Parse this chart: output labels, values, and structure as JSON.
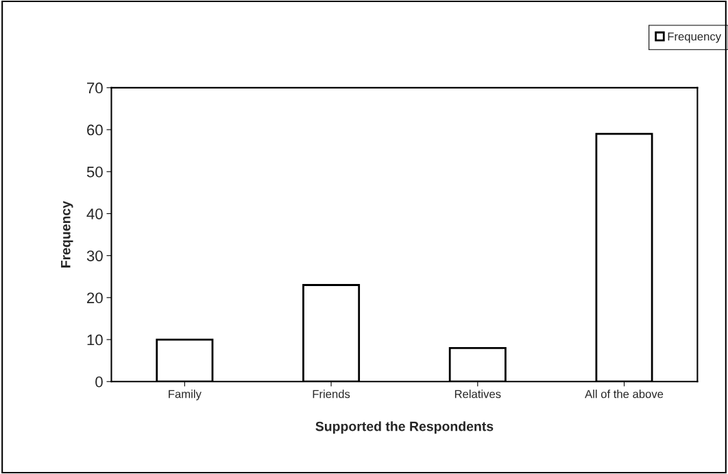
{
  "chart_data": {
    "type": "bar",
    "xlabel": "Supported the Respondents",
    "ylabel": "Frequency",
    "categories": [
      "Family",
      "Friends",
      "Relatives",
      "All of the above"
    ],
    "series": [
      {
        "name": "Frequency",
        "color": "#ffffff",
        "values": [
          10,
          23,
          8,
          59
        ]
      }
    ],
    "ylim": [
      0,
      70
    ],
    "yticks": [
      0,
      10,
      20,
      30,
      40,
      50,
      60,
      70
    ],
    "grid": false,
    "legend": "top right"
  }
}
